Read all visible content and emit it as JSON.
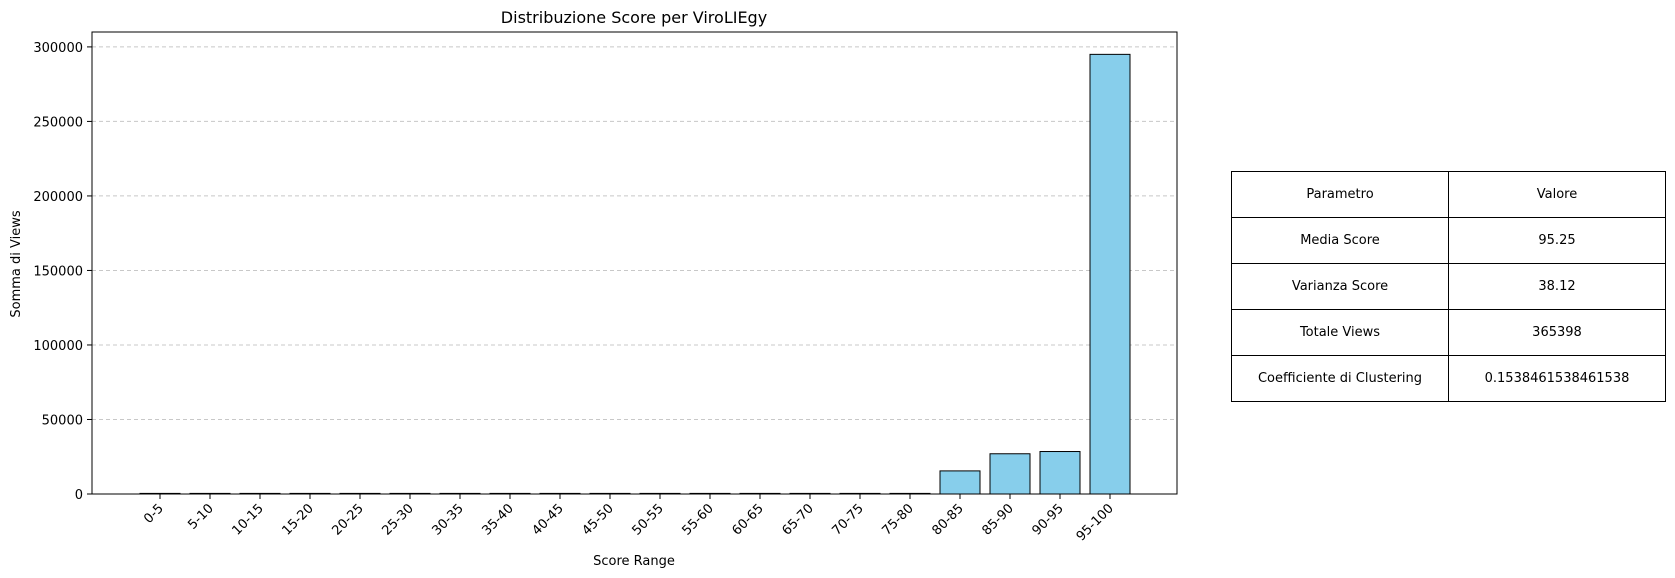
{
  "chart_data": {
    "type": "bar",
    "title": "Distribuzione Score per ViroLIEgy",
    "xlabel": "Score Range",
    "ylabel": "Somma di Views",
    "categories": [
      "0-5",
      "5-10",
      "10-15",
      "15-20",
      "20-25",
      "25-30",
      "30-35",
      "35-40",
      "40-45",
      "45-50",
      "50-55",
      "55-60",
      "60-65",
      "65-70",
      "70-75",
      "75-80",
      "80-85",
      "85-90",
      "90-95",
      "95-100"
    ],
    "values": [
      0,
      0,
      0,
      0,
      0,
      0,
      0,
      0,
      0,
      0,
      0,
      0,
      0,
      0,
      0,
      0,
      15500,
      27000,
      28500,
      295000
    ],
    "ylim": [
      0,
      310000
    ],
    "yticks": [
      0,
      50000,
      100000,
      150000,
      200000,
      250000,
      300000
    ],
    "ytick_labels": [
      "0",
      "50000",
      "100000",
      "150000",
      "200000",
      "250000",
      "300000"
    ],
    "grid": "y-dashed",
    "bar_color": "#87CEEB",
    "bar_edge_color": "#000000",
    "grid_color": "#c8c8c8"
  },
  "table": {
    "headers": [
      "Parametro",
      "Valore"
    ],
    "rows": [
      [
        "Media Score",
        "95.25"
      ],
      [
        "Varianza Score",
        "38.12"
      ],
      [
        "Totale Views",
        "365398"
      ],
      [
        "Coefficiente di Clustering",
        "0.1538461538461538"
      ]
    ]
  }
}
